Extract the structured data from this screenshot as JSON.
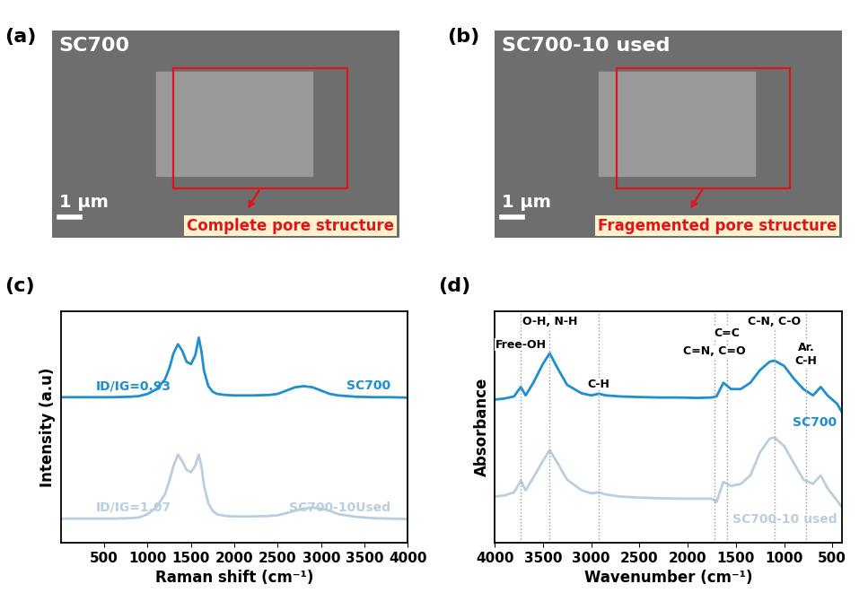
{
  "images": [
    {
      "panel": "(a)",
      "label": "SC700",
      "scale_bar": "1 µm",
      "annotation": "Complete pore structure"
    },
    {
      "panel": "(b)",
      "label": "SC700-10 used",
      "scale_bar": "1 µm",
      "annotation": "Fragemented pore structure"
    }
  ],
  "chart_data": [
    {
      "type": "line",
      "panel": "(c)",
      "x_label": "Raman shift (cm⁻¹)",
      "y_label": "Intensity (a.u)",
      "xlim": [
        0,
        4000
      ],
      "xticks": [
        500,
        1000,
        1500,
        2000,
        2500,
        3000,
        3500,
        4000
      ],
      "ylim": [
        0,
        10.5
      ],
      "tick_labels": "x",
      "x": [
        0,
        200,
        400,
        600,
        800,
        900,
        1000,
        1100,
        1200,
        1250,
        1300,
        1350,
        1400,
        1450,
        1500,
        1550,
        1590,
        1620,
        1650,
        1700,
        1750,
        1800,
        1900,
        2000,
        2200,
        2400,
        2500,
        2600,
        2700,
        2800,
        2900,
        3000,
        3100,
        3200,
        3400,
        3600,
        3800,
        4000
      ],
      "series": [
        {
          "name": "SC700",
          "color": "#1f8fcf",
          "note": "ID/IG=0.93",
          "values": [
            6.6,
            6.6,
            6.6,
            6.6,
            6.62,
            6.65,
            6.75,
            6.95,
            7.4,
            7.9,
            8.6,
            9.0,
            8.7,
            8.2,
            8.1,
            8.5,
            9.3,
            8.7,
            7.8,
            7.1,
            6.85,
            6.75,
            6.7,
            6.68,
            6.68,
            6.7,
            6.75,
            6.9,
            7.05,
            7.1,
            7.05,
            6.9,
            6.75,
            6.68,
            6.62,
            6.6,
            6.6,
            6.58
          ]
        },
        {
          "name": "SC700-10Used",
          "color": "#b9cfe0",
          "note": "ID/IG=1.07",
          "values": [
            1.1,
            1.1,
            1.1,
            1.1,
            1.12,
            1.15,
            1.3,
            1.6,
            2.2,
            2.8,
            3.5,
            4.0,
            3.7,
            3.3,
            3.2,
            3.5,
            4.0,
            3.5,
            2.6,
            1.8,
            1.45,
            1.3,
            1.22,
            1.2,
            1.2,
            1.22,
            1.25,
            1.35,
            1.45,
            1.55,
            1.6,
            1.55,
            1.45,
            1.3,
            1.18,
            1.12,
            1.1,
            1.08
          ]
        }
      ]
    },
    {
      "type": "line",
      "panel": "(d)",
      "x_label": "Wavenumber (cm⁻¹)",
      "y_label": "Absorbance",
      "xlim": [
        4000,
        400
      ],
      "xticks": [
        4000,
        3500,
        3000,
        2500,
        2000,
        1500,
        1000,
        500
      ],
      "ylim": [
        0,
        11
      ],
      "tick_labels": "x",
      "bands": [
        {
          "value": 3730,
          "label": "Free-OH"
        },
        {
          "value": 3430,
          "label": "O-H, N-H"
        },
        {
          "value": 2920,
          "label": "C-H"
        },
        {
          "value": 1720,
          "label": "C=N, C=O"
        },
        {
          "value": 1590,
          "label": "C=C"
        },
        {
          "value": 1100,
          "label": "C-N, C-O"
        },
        {
          "value": 770,
          "label": "Ar.\nC-H"
        }
      ],
      "x": [
        4000,
        3900,
        3800,
        3730,
        3680,
        3600,
        3500,
        3430,
        3350,
        3250,
        3100,
        3000,
        2920,
        2850,
        2700,
        2500,
        2300,
        2100,
        1900,
        1750,
        1700,
        1630,
        1550,
        1450,
        1350,
        1250,
        1150,
        1100,
        1000,
        900,
        800,
        700,
        620,
        550,
        450,
        400
      ],
      "series": [
        {
          "name": "SC700",
          "color": "#1f8fcf",
          "values": [
            6.8,
            6.85,
            6.95,
            7.4,
            7.0,
            7.6,
            8.5,
            9.0,
            8.3,
            7.5,
            7.1,
            7.0,
            7.08,
            7.0,
            6.95,
            6.92,
            6.9,
            6.9,
            6.88,
            6.9,
            6.95,
            7.6,
            7.3,
            7.3,
            7.6,
            8.2,
            8.6,
            8.65,
            8.4,
            7.8,
            7.3,
            7.0,
            7.4,
            7.0,
            6.6,
            6.2
          ]
        },
        {
          "name": "SC700-10 used",
          "color": "#b9cfe0",
          "values": [
            2.2,
            2.25,
            2.4,
            2.95,
            2.5,
            3.1,
            3.9,
            4.4,
            3.8,
            3.0,
            2.5,
            2.35,
            2.4,
            2.3,
            2.2,
            2.15,
            2.12,
            2.1,
            2.1,
            2.1,
            1.95,
            2.9,
            2.7,
            2.8,
            3.2,
            4.3,
            4.95,
            5.0,
            4.6,
            3.8,
            3.0,
            2.8,
            3.2,
            2.6,
            2.0,
            1.7
          ]
        }
      ]
    }
  ]
}
